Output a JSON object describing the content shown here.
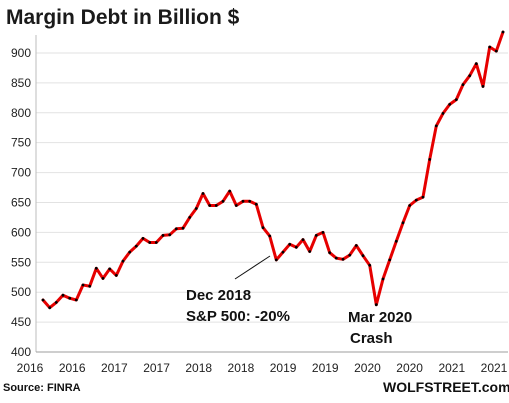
{
  "chart_data": {
    "type": "line",
    "title": "Margin Debt in Billion $",
    "xlabel": "",
    "ylabel": "",
    "ylim": [
      400,
      930
    ],
    "yticks": [
      400,
      450,
      500,
      550,
      600,
      650,
      700,
      750,
      800,
      850,
      900
    ],
    "xticks": [
      "2016",
      "2016",
      "2017",
      "2017",
      "2018",
      "2018",
      "2019",
      "2019",
      "2020",
      "2020",
      "2021",
      "2021"
    ],
    "grid": "horizontal",
    "series_color": "#e60000",
    "marker_color": "#000000",
    "x": [
      "2016-01",
      "2016-02",
      "2016-03",
      "2016-04",
      "2016-05",
      "2016-06",
      "2016-07",
      "2016-08",
      "2016-09",
      "2016-10",
      "2016-11",
      "2016-12",
      "2017-01",
      "2017-02",
      "2017-03",
      "2017-04",
      "2017-05",
      "2017-06",
      "2017-07",
      "2017-08",
      "2017-09",
      "2017-10",
      "2017-11",
      "2017-12",
      "2018-01",
      "2018-02",
      "2018-03",
      "2018-04",
      "2018-05",
      "2018-06",
      "2018-07",
      "2018-08",
      "2018-09",
      "2018-10",
      "2018-11",
      "2018-12",
      "2019-01",
      "2019-02",
      "2019-03",
      "2019-04",
      "2019-05",
      "2019-06",
      "2019-07",
      "2019-08",
      "2019-09",
      "2019-10",
      "2019-11",
      "2019-12",
      "2020-01",
      "2020-02",
      "2020-03",
      "2020-04",
      "2020-05",
      "2020-06",
      "2020-07",
      "2020-08",
      "2020-09",
      "2020-10",
      "2020-11",
      "2020-12",
      "2021-01",
      "2021-02",
      "2021-03",
      "2021-04",
      "2021-05",
      "2021-06",
      "2021-07",
      "2021-08",
      "2021-09",
      "2021-10"
    ],
    "series": [
      {
        "values": [
          487,
          474,
          483,
          495,
          490,
          487,
          512,
          510,
          540,
          523,
          539,
          528,
          552,
          567,
          577,
          590,
          583,
          583,
          595,
          596,
          606,
          607,
          625,
          640,
          665,
          645,
          645,
          652,
          669,
          645,
          652,
          652,
          647,
          608,
          594,
          554,
          567,
          580,
          575,
          588,
          568,
          595,
          600,
          566,
          557,
          555,
          562,
          578,
          561,
          545,
          479,
          522,
          554,
          585,
          616,
          645,
          654,
          659,
          722,
          778,
          799,
          814,
          822,
          847,
          862,
          882,
          844,
          910,
          903,
          935
        ]
      }
    ],
    "annotations": [
      {
        "lines": [
          "Dec 2018",
          "S&P 500: -20%"
        ],
        "points_to": "2018-12"
      },
      {
        "lines": [
          "Mar 2020",
          "Crash"
        ],
        "points_to": "2020-03"
      }
    ]
  },
  "footer": {
    "source": "Source: FINRA",
    "brand": "WOLFSTREET.com"
  }
}
